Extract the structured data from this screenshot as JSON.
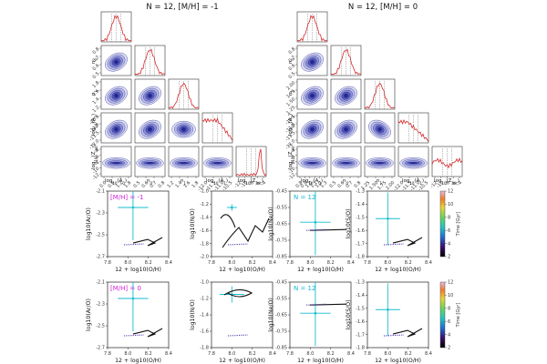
{
  "figure": {
    "corner_left_title": "N = 12, [M/H] = -1",
    "corner_right_title": "N = 12, [M/H] = 0",
    "corner_params": [
      "log10(A0)",
      "n0",
      "n1",
      "log10(A1)",
      "log10(Zinit)"
    ],
    "corner_labels": {
      "a0_prefix": "log",
      "a0_sub": "10",
      "a0_rest": "(A",
      "a0_sub2": "0",
      "a0_close": ")",
      "n0": "n",
      "n0_sub": "0",
      "n1": "n",
      "n1_sub": "1",
      "a1_prefix": "log",
      "a1_sub": "10",
      "a1_rest": "(A",
      "a1_sub2": "1",
      "a1_close": ")",
      "z_prefix": "log",
      "z_sub": "10",
      "z_rest": "(Z",
      "z_sub2": "init",
      "z_close": ")"
    },
    "corner_ticks_left": {
      "a0": [
        "0.0",
        "0.6",
        "1.2",
        "1.8"
      ],
      "n0": [
        "0.5",
        "0.6",
        "0.7",
        "0.8"
      ],
      "n1": [
        "1.2",
        "1.4",
        "1.6",
        "1.8"
      ],
      "a1": [
        "-12.0",
        "-11.5",
        "-11.0",
        "-10.5"
      ],
      "z": [
        "-12",
        "-10",
        "-8",
        "-6",
        "-4"
      ]
    },
    "corner_ticks_right": {
      "a0": [
        "0.8",
        "0.9",
        "1.0",
        "1.1",
        "1.2",
        "1.3"
      ],
      "n0": [
        "0.5",
        "0.6",
        "0.7",
        "0.8"
      ],
      "n1": [
        "1.25",
        "1.50",
        "1.75",
        "2.00"
      ],
      "a1": [
        "-12.0",
        "-11.5",
        "-11.0",
        "-10.5"
      ],
      "z": [
        "-12",
        "-10",
        "-8",
        "-6",
        "-4"
      ]
    },
    "row_labels": {
      "r1": "[M/H] = -1",
      "r2": "[M/H] = 0",
      "n12a": "N = 12",
      "n12b": "N = 12"
    },
    "colorbar_label": "Time [Gyr]"
  },
  "chart_data": [
    {
      "type": "corner",
      "title": "N = 12, [M/H] = -1",
      "params": [
        "log10(A0)",
        "n0",
        "n1",
        "log10(A1)",
        "log10(Zinit)"
      ],
      "ranges": [
        [
          0.0,
          1.8
        ],
        [
          0.5,
          0.8
        ],
        [
          1.2,
          1.8
        ],
        [
          -12.0,
          -10.5
        ],
        [
          -12,
          -4
        ]
      ],
      "marginal_shape": [
        "unimodal",
        "unimodal",
        "unimodal",
        "flat-then-falling",
        "sharp-peak-at-high-end"
      ]
    },
    {
      "type": "corner",
      "title": "N = 12, [M/H] = 0",
      "params": [
        "log10(A0)",
        "n0",
        "n1",
        "log10(A1)",
        "log10(Zinit)"
      ],
      "ranges": [
        [
          0.8,
          1.3
        ],
        [
          0.5,
          0.8
        ],
        [
          1.25,
          2.0
        ],
        [
          -12.0,
          -10.5
        ],
        [
          -12,
          -4
        ]
      ],
      "marginal_shape": [
        "unimodal",
        "unimodal",
        "unimodal",
        "falling",
        "broad-flat"
      ]
    },
    {
      "type": "line",
      "grid": "2x4",
      "xlabel": "12 + log10(O/H)",
      "xlim": [
        7.8,
        8.4
      ],
      "xticks": [
        "7.8",
        "8.0",
        "8.2",
        "8.4"
      ],
      "panels": [
        {
          "row": "[M/H] = -1",
          "ylabel": "log10(Ar/O)",
          "ylim": [
            -2.7,
            -2.1
          ],
          "yticks": [
            "-2.1",
            "-2.3",
            "-2.5",
            "-2.7"
          ],
          "obs": {
            "x": 8.05,
            "y": -2.25,
            "xerr": 0.15,
            "yerr": 0.3
          }
        },
        {
          "row": "[M/H] = -1",
          "ylabel": "log10(N/O)",
          "ylim": [
            -2.0,
            -1.0
          ],
          "yticks": [
            "-1.0",
            "-1.2",
            "-1.4",
            "-1.6",
            "-1.8",
            "-2.0"
          ],
          "obs": {
            "x": 8.0,
            "y": -1.25,
            "xerr": 0.05,
            "yerr": 0.05
          }
        },
        {
          "row": "[M/H] = -1",
          "ylabel": "log10(Ne/O)",
          "ylim": [
            -0.85,
            -0.45
          ],
          "yticks": [
            "-0.45",
            "-0.55",
            "-0.65",
            "-0.75",
            "-0.85"
          ],
          "obs": {
            "x": 8.05,
            "y": -0.64,
            "xerr": 0.15,
            "yerr": 0.2
          }
        },
        {
          "row": "[M/H] = -1",
          "ylabel": "log10(S/O)",
          "ylim": [
            -1.8,
            -1.3
          ],
          "yticks": [
            "-1.3",
            "-1.4",
            "-1.5",
            "-1.6",
            "-1.7",
            "-1.8"
          ],
          "obs": {
            "x": 8.0,
            "y": -1.51,
            "xerr": 0.12,
            "yerr": 0.2
          }
        },
        {
          "row": "[M/H] = 0",
          "ylabel": "log10(Ar/O)",
          "ylim": [
            -2.7,
            -2.1
          ],
          "yticks": [
            "-2.1",
            "-2.3",
            "-2.5",
            "-2.7"
          ],
          "obs": {
            "x": 8.05,
            "y": -2.25,
            "xerr": 0.15,
            "yerr": 0.3
          }
        },
        {
          "row": "[M/H] = 0",
          "ylabel": "log10(N/O)",
          "ylim": [
            -1.8,
            -1.0
          ],
          "yticks": [
            "-1.0",
            "-1.2",
            "-1.4",
            "-1.6",
            "-1.8"
          ],
          "obs": {
            "x": 8.0,
            "y": -1.15,
            "xerr": 0.12,
            "yerr": 0.1
          }
        },
        {
          "row": "[M/H] = 0",
          "ylabel": "log10(Ne/O)",
          "ylim": [
            -0.85,
            -0.45
          ],
          "yticks": [
            "-0.45",
            "-0.55",
            "-0.65",
            "-0.75",
            "-0.85"
          ],
          "obs": {
            "x": 8.05,
            "y": -0.64,
            "xerr": 0.15,
            "yerr": 0.2
          }
        },
        {
          "row": "[M/H] = 0",
          "ylabel": "log10(S/O)",
          "ylim": [
            -1.8,
            -1.3
          ],
          "yticks": [
            "-1.3",
            "-1.4",
            "-1.5",
            "-1.6",
            "-1.7",
            "-1.8"
          ],
          "obs": {
            "x": 8.0,
            "y": -1.51,
            "xerr": 0.12,
            "yerr": 0.2
          }
        }
      ],
      "colorbar": {
        "label": "Time [Gyr]",
        "range": [
          2,
          12
        ],
        "ticks": [
          "2",
          "4",
          "6",
          "8",
          "10",
          "12"
        ]
      }
    }
  ],
  "colors": {
    "contour": "#1a1c8c",
    "hist": "#d62728",
    "obs": "#17becf",
    "annot_magenta": "#d61fd6",
    "annot_cyan": "#17b3cf"
  }
}
